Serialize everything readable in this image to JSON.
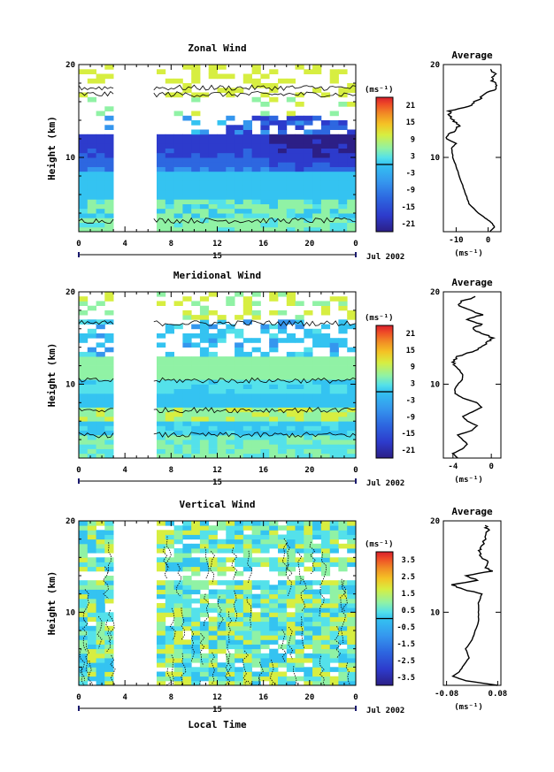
{
  "chart_data": [
    {
      "type": "heatmap",
      "title": "Zonal Wind",
      "ylabel": "Height (km)",
      "ylim": [
        2,
        20
      ],
      "y_ticks": [
        "20",
        "10"
      ],
      "x_ticks": [
        "0",
        "4",
        "8",
        "12",
        "16",
        "20",
        "0"
      ],
      "date_tick": "15",
      "date_label": "Jul 2002",
      "colorbar": {
        "unit": "(ms⁻¹)",
        "labels": [
          "21",
          "15",
          "9",
          "3",
          "-3",
          "-9",
          "-15",
          "-21"
        ]
      },
      "data_gap": [
        3,
        6.5
      ],
      "average_profile": {
        "title": "Average",
        "x_ticks": [
          "-10",
          "0"
        ],
        "xlabel": "(ms⁻¹)",
        "xlim": [
          -14,
          4
        ],
        "heights": [
          2,
          2.5,
          3,
          3.5,
          4,
          5,
          6,
          7,
          8,
          9,
          10,
          11,
          11.5,
          12,
          12.5,
          13,
          13.5,
          14,
          14.5,
          15,
          15.5,
          16,
          16.5,
          17,
          17.5,
          18,
          18.5,
          19,
          19.5
        ],
        "values": [
          0.5,
          2,
          1,
          -1,
          -3,
          -6,
          -7,
          -8,
          -9,
          -10,
          -11,
          -11.5,
          -10,
          -13,
          -12,
          -10,
          -9,
          -11,
          -12,
          -12,
          -6,
          -4,
          -2,
          0,
          3,
          2,
          1,
          2,
          1
        ]
      }
    },
    {
      "type": "heatmap",
      "title": "Meridional Wind",
      "ylabel": "Height (km)",
      "ylim": [
        2,
        20
      ],
      "y_ticks": [
        "20",
        "10"
      ],
      "x_ticks": [
        "0",
        "4",
        "8",
        "12",
        "16",
        "20",
        "0"
      ],
      "date_tick": "15",
      "date_label": "Jul 2002",
      "colorbar": {
        "unit": "(ms⁻¹)",
        "labels": [
          "21",
          "15",
          "9",
          "3",
          "-3",
          "-9",
          "-15",
          "-21"
        ]
      },
      "data_gap": [
        3,
        6.5
      ],
      "average_profile": {
        "title": "Average",
        "x_ticks": [
          "-4",
          "0"
        ],
        "xlabel": "(ms⁻¹)",
        "xlim": [
          -5,
          1
        ],
        "heights": [
          2,
          2.5,
          3,
          3.5,
          4,
          4.5,
          5,
          5.5,
          6,
          6.5,
          7,
          7.5,
          8,
          8.5,
          9,
          9.5,
          10,
          10.5,
          11,
          11.5,
          12,
          12.5,
          13,
          13.5,
          14,
          14.5,
          15,
          15.5,
          16,
          16.5,
          17,
          17.5,
          18,
          18.5,
          19,
          19.5
        ],
        "values": [
          -3.5,
          -4,
          -3,
          -2.5,
          -3,
          -3.5,
          -2,
          -1.5,
          -2.5,
          -3,
          -2,
          -1,
          -1.5,
          -3,
          -3.8,
          -3.8,
          -3.5,
          -3,
          -3,
          -3.3,
          -3.8,
          -4,
          -3.5,
          -2,
          -1,
          -0.5,
          0.2,
          -1,
          -2,
          -1,
          -2.5,
          -1,
          -2,
          -3.5,
          -3,
          -1.5
        ]
      }
    },
    {
      "type": "heatmap",
      "title": "Vertical Wind",
      "ylabel": "Height (km)",
      "xlabel": "Local Time",
      "ylim": [
        2,
        20
      ],
      "y_ticks": [
        "20",
        "10"
      ],
      "x_ticks": [
        "0",
        "4",
        "8",
        "12",
        "16",
        "20",
        "0"
      ],
      "date_tick": "15",
      "date_label": "Jul 2002",
      "colorbar": {
        "unit": "(ms⁻¹)",
        "labels": [
          "3.5",
          "2.5",
          "1.5",
          "0.5",
          "-0.5",
          "-1.5",
          "-2.5",
          "-3.5"
        ]
      },
      "data_gap": [
        3,
        6.5
      ],
      "average_profile": {
        "title": "Average",
        "x_ticks": [
          "-0.08",
          "0.08"
        ],
        "xlabel": "(ms⁻¹)",
        "xlim": [
          -0.09,
          0.09
        ],
        "heights": [
          2,
          2.5,
          3,
          3.5,
          4,
          5,
          6,
          7,
          8,
          9,
          10,
          11,
          12,
          12.5,
          13,
          13.5,
          14,
          14.5,
          15,
          15.5,
          16,
          16.5,
          17,
          18,
          19,
          19.5
        ],
        "values": [
          0.08,
          -0.02,
          -0.06,
          -0.04,
          -0.03,
          -0.01,
          -0.02,
          0,
          0.01,
          0.02,
          0.02,
          0.02,
          0.03,
          -0.03,
          -0.06,
          0.02,
          -0.02,
          0.06,
          0.04,
          0.05,
          0.03,
          0.02,
          0.03,
          0.04,
          0.05,
          0.04
        ]
      }
    }
  ],
  "colormap": [
    "#2c1f86",
    "#2d3bcc",
    "#2d67e0",
    "#3596ee",
    "#34c3f1",
    "#54e1ea",
    "#90f2a5",
    "#d7ee41",
    "#f4c325",
    "#f18a25",
    "#ee4a27",
    "#d81f2c"
  ]
}
